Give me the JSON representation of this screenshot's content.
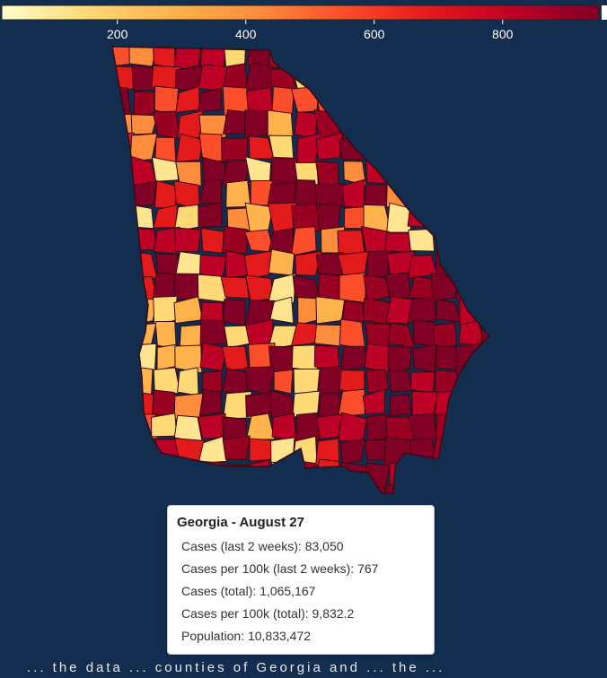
{
  "legend": {
    "ticks": [
      200,
      400,
      600,
      800
    ],
    "min": 20,
    "max": 950,
    "color_stops": [
      "#ffffcc",
      "#fed976",
      "#feb24c",
      "#fd8d3c",
      "#fc4e2a",
      "#e31a1c",
      "#bd0026",
      "#800026"
    ]
  },
  "map": {
    "background": "#132d4e",
    "border_color": "#3a0a14",
    "region": "Georgia"
  },
  "tooltip": {
    "title": "Georgia - August 27",
    "rows": [
      {
        "label": "Cases (last 2 weeks):",
        "value": "83,050"
      },
      {
        "label": "Cases per 100k (last 2 weeks):",
        "value": "767"
      },
      {
        "label": "Cases (total):",
        "value": "1,065,167"
      },
      {
        "label": "Cases per 100k (total):",
        "value": "9,832.2"
      },
      {
        "label": "Population:",
        "value": "10,833,472"
      }
    ]
  },
  "footer": {
    "text": "... the data ... counties of Georgia and ... the ..."
  }
}
